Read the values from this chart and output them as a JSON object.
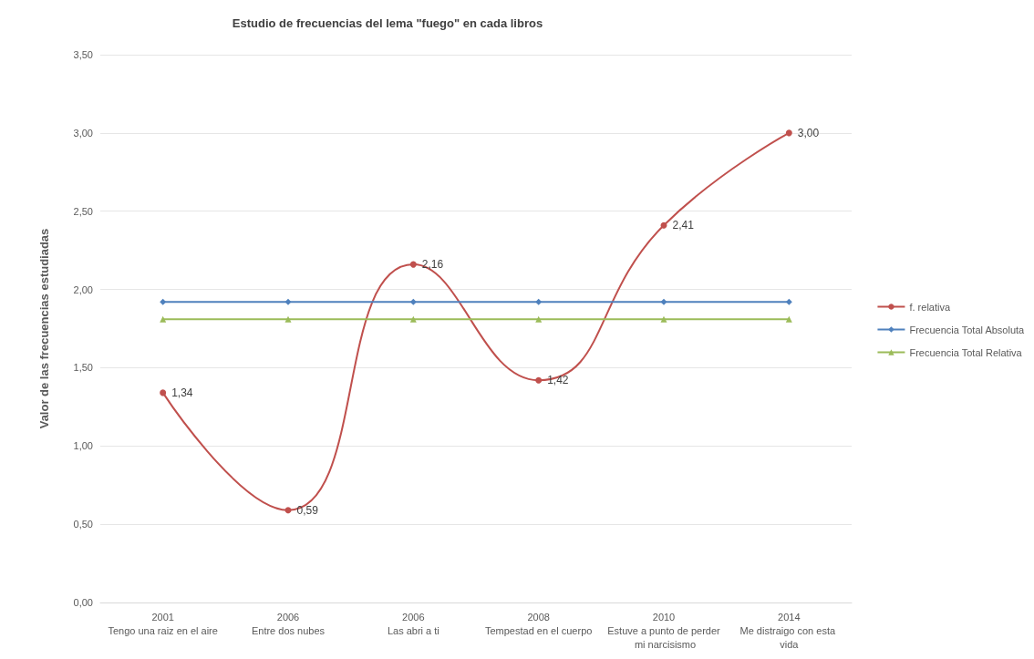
{
  "chart_data": {
    "type": "line",
    "title": "Estudio de frecuencias del lema \"fuego\" en cada libros",
    "ylabel": "Valor de las frecuencias estudiadas",
    "categories": [
      "2001\nTengo una raiz en el aire",
      "2006\nEntre dos nubes",
      "2006\nLas abri a ti",
      "2008\nTempestad en el cuerpo",
      "2010\nEstuve a punto de perder mi narcisismo",
      "2014\nMe distraigo con esta vida"
    ],
    "series": [
      {
        "name": "f. relativa",
        "color": "#c0504d",
        "marker": "circle",
        "values": [
          1.34,
          0.59,
          2.16,
          1.42,
          2.41,
          3.0
        ],
        "value_labels": [
          "1,34",
          "0,59",
          "2,16",
          "1,42",
          "2,41",
          "3,00"
        ]
      },
      {
        "name": "Frecuencia Total Absoluta",
        "color": "#4f81bd",
        "marker": "diamond",
        "values": [
          1.92,
          1.92,
          1.92,
          1.92,
          1.92,
          1.92
        ]
      },
      {
        "name": "Frecuencia Total Relativa",
        "color": "#9bbb59",
        "marker": "triangle",
        "values": [
          1.81,
          1.81,
          1.81,
          1.81,
          1.81,
          1.81
        ]
      }
    ],
    "ylim": [
      0,
      3.5
    ],
    "yticks": [
      {
        "value": 0,
        "label": "0,00"
      },
      {
        "value": 0.5,
        "label": "0,50"
      },
      {
        "value": 1,
        "label": "1,00"
      },
      {
        "value": 1.5,
        "label": "1,50"
      },
      {
        "value": 2,
        "label": "2,00"
      },
      {
        "value": 2.5,
        "label": "2,50"
      },
      {
        "value": 3,
        "label": "3,00"
      },
      {
        "value": 3.5,
        "label": "3,50"
      }
    ],
    "grid": "y",
    "legend": "right"
  }
}
